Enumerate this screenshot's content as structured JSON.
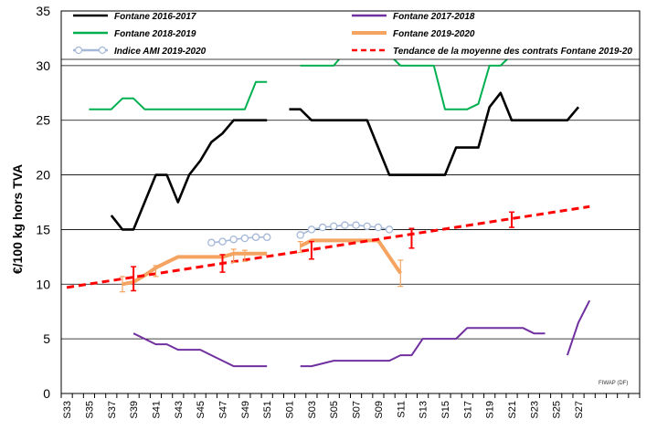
{
  "chart_data": {
    "type": "line",
    "ylabel": "€/100 kg hors TVA",
    "ylim": [
      0,
      35
    ],
    "yticks": [
      0,
      5,
      10,
      15,
      20,
      25,
      30,
      35
    ],
    "grid": "horizontal",
    "legend_position": "top",
    "credit": "FIWAP (DF)",
    "x": [
      "S33",
      "S35",
      "S37",
      "S39",
      "S41",
      "S43",
      "S45",
      "S47",
      "S49",
      "S51",
      "S01",
      "S03",
      "S05",
      "S07",
      "S09",
      "S11",
      "S13",
      "S15",
      "S17",
      "S19",
      "S21",
      "S23",
      "S25",
      "S27"
    ],
    "series": [
      {
        "name": "Fontane 2016-2017",
        "color": "#000000",
        "points": [
          [
            "S37",
            16.3
          ],
          [
            "S38",
            15
          ],
          [
            "S39",
            15
          ],
          [
            "S40",
            17.5
          ],
          [
            "S41",
            20
          ],
          [
            "S42",
            20
          ],
          [
            "S43",
            17.5
          ],
          [
            "S44",
            20
          ],
          [
            "S45",
            21.3
          ],
          [
            "S46",
            23
          ],
          [
            "S47",
            23.8
          ],
          [
            "S48",
            25
          ],
          [
            "S49",
            25
          ],
          [
            "S50",
            25
          ],
          [
            "S51",
            25
          ],
          null,
          [
            "S01",
            26
          ],
          [
            "S02",
            26
          ],
          [
            "S03",
            25
          ],
          [
            "S04",
            25
          ],
          [
            "S05",
            25
          ],
          [
            "S06",
            25
          ],
          [
            "S07",
            25
          ],
          [
            "S08",
            25
          ],
          [
            "S09",
            22.5
          ],
          [
            "S10",
            20
          ],
          [
            "S11",
            20
          ],
          [
            "S12",
            20
          ],
          [
            "S13",
            20
          ],
          [
            "S14",
            20
          ],
          [
            "S15",
            20
          ],
          [
            "S16",
            22.5
          ],
          [
            "S17",
            22.5
          ],
          [
            "S18",
            22.5
          ],
          [
            "S19",
            26.2
          ],
          [
            "S20",
            27.5
          ],
          [
            "S21",
            25
          ],
          [
            "S22",
            25
          ],
          [
            "S23",
            25
          ],
          [
            "S24",
            25
          ],
          [
            "S25",
            25
          ],
          [
            "S26",
            25
          ],
          [
            "S27",
            26.2
          ]
        ]
      },
      {
        "name": "Fontane 2017-2018",
        "color": "#7030a0",
        "points": [
          [
            "S39",
            5.5
          ],
          [
            "S40",
            5
          ],
          [
            "S41",
            4.5
          ],
          [
            "S42",
            4.5
          ],
          [
            "S43",
            4
          ],
          [
            "S44",
            4
          ],
          [
            "S45",
            4
          ],
          [
            "S46",
            3.5
          ],
          [
            "S47",
            3
          ],
          [
            "S48",
            2.5
          ],
          [
            "S49",
            2.5
          ],
          [
            "S50",
            2.5
          ],
          [
            "S51",
            2.5
          ],
          null,
          [
            "S02",
            2.5
          ],
          [
            "S03",
            2.5
          ],
          [
            "S04",
            2.75
          ],
          [
            "S05",
            3
          ],
          [
            "S06",
            3
          ],
          [
            "S07",
            3
          ],
          [
            "S08",
            3
          ],
          [
            "S09",
            3
          ],
          [
            "S10",
            3
          ],
          [
            "S11",
            3.5
          ],
          [
            "S12",
            3.5
          ],
          [
            "S13",
            5
          ],
          [
            "S14",
            5
          ],
          [
            "S15",
            5
          ],
          [
            "S16",
            5
          ],
          [
            "S17",
            6
          ],
          [
            "S18",
            6
          ],
          [
            "S19",
            6
          ],
          [
            "S20",
            6
          ],
          [
            "S21",
            6
          ],
          [
            "S22",
            6
          ],
          [
            "S23",
            5.5
          ],
          [
            "S24",
            5.5
          ],
          null,
          [
            "S26",
            3.5
          ],
          [
            "S27",
            6.5
          ],
          [
            "S28",
            8.5
          ]
        ]
      },
      {
        "name": "Fontane 2018-2019",
        "color": "#00b050",
        "points": [
          [
            "S35",
            26
          ],
          [
            "S36",
            26
          ],
          [
            "S37",
            26
          ],
          [
            "S38",
            27
          ],
          [
            "S39",
            27
          ],
          [
            "S40",
            26
          ],
          [
            "S41",
            26
          ],
          [
            "S42",
            26
          ],
          [
            "S43",
            26
          ],
          [
            "S44",
            26
          ],
          [
            "S45",
            26
          ],
          [
            "S46",
            26
          ],
          [
            "S47",
            26
          ],
          [
            "S48",
            26
          ],
          [
            "S49",
            26
          ],
          [
            "S50",
            28.5
          ],
          [
            "S51",
            28.5
          ],
          null,
          [
            "S02",
            30
          ],
          [
            "S03",
            30
          ],
          [
            "S04",
            30
          ],
          [
            "S05",
            30
          ],
          [
            "S06",
            31.2
          ],
          [
            "S07",
            31.2
          ],
          [
            "S08",
            31.2
          ],
          [
            "S09",
            31
          ],
          [
            "S10",
            31
          ],
          [
            "S11",
            30
          ],
          [
            "S12",
            30
          ],
          [
            "S13",
            30
          ],
          [
            "S14",
            30
          ],
          [
            "S15",
            26
          ],
          [
            "S16",
            26
          ],
          [
            "S17",
            26
          ],
          [
            "S18",
            26.5
          ],
          [
            "S19",
            30
          ],
          [
            "S20",
            30
          ],
          [
            "S21",
            31
          ],
          [
            "S22",
            31
          ],
          [
            "S23",
            31
          ],
          [
            "S24",
            31
          ]
        ]
      },
      {
        "name": "Fontane 2019-2020",
        "color": "#f4a460",
        "points": [
          [
            "S38",
            10
          ],
          [
            "S39",
            10.2
          ],
          [
            "S40",
            10.8
          ],
          [
            "S41",
            11.5
          ],
          [
            "S42",
            12
          ],
          [
            "S43",
            12.5
          ],
          [
            "S44",
            12.5
          ],
          [
            "S45",
            12.5
          ],
          [
            "S46",
            12.5
          ],
          [
            "S47",
            12.5
          ],
          [
            "S48",
            12.8
          ],
          [
            "S49",
            12.8
          ],
          [
            "S50",
            12.8
          ],
          [
            "S51",
            12.8
          ],
          null,
          [
            "S02",
            13.5
          ],
          [
            "S03",
            14
          ],
          [
            "S04",
            14
          ],
          [
            "S05",
            14
          ],
          [
            "S06",
            14
          ],
          [
            "S07",
            14
          ],
          [
            "S08",
            14
          ],
          [
            "S09",
            14
          ],
          [
            "S10",
            12.5
          ],
          [
            "S11",
            11
          ]
        ]
      },
      {
        "name": "Indice AMI 2019-2020",
        "color": "#a6b8d8",
        "marker": "circle",
        "points": [
          [
            "S46",
            13.8
          ],
          [
            "S47",
            13.9
          ],
          [
            "S48",
            14.1
          ],
          [
            "S49",
            14.2
          ],
          [
            "S50",
            14.3
          ],
          [
            "S51",
            14.3
          ],
          null,
          [
            "S02",
            14.5
          ],
          [
            "S03",
            15
          ],
          [
            "S04",
            15.2
          ],
          [
            "S05",
            15.3
          ],
          [
            "S06",
            15.4
          ],
          [
            "S07",
            15.4
          ],
          [
            "S08",
            15.3
          ],
          [
            "S09",
            15.2
          ],
          [
            "S10",
            15
          ]
        ]
      },
      {
        "name": "Tendance de la moyenne des contrats Fontane 2019-20",
        "color": "#ff0000",
        "dashed": true,
        "points": [
          [
            "S33",
            9.7
          ],
          [
            "S28",
            17.1
          ]
        ]
      }
    ],
    "error_bars": {
      "color": "#ff0000",
      "points": [
        [
          "S39",
          10.5,
          1.1
        ],
        [
          "S47",
          11.9,
          0.8
        ],
        [
          "S03",
          13.1,
          0.8
        ],
        [
          "S12",
          14.2,
          0.9
        ],
        [
          "S21",
          15.9,
          0.7
        ]
      ]
    },
    "orange_error_bars": [
      [
        "S38",
        10,
        0.7
      ],
      [
        "S41",
        11.2,
        0.5
      ],
      [
        "S48",
        12.6,
        0.6
      ],
      [
        "S49",
        12.6,
        0.5
      ],
      [
        "S02",
        13.4,
        0.5
      ],
      [
        "S11",
        11,
        1.2
      ]
    ]
  }
}
